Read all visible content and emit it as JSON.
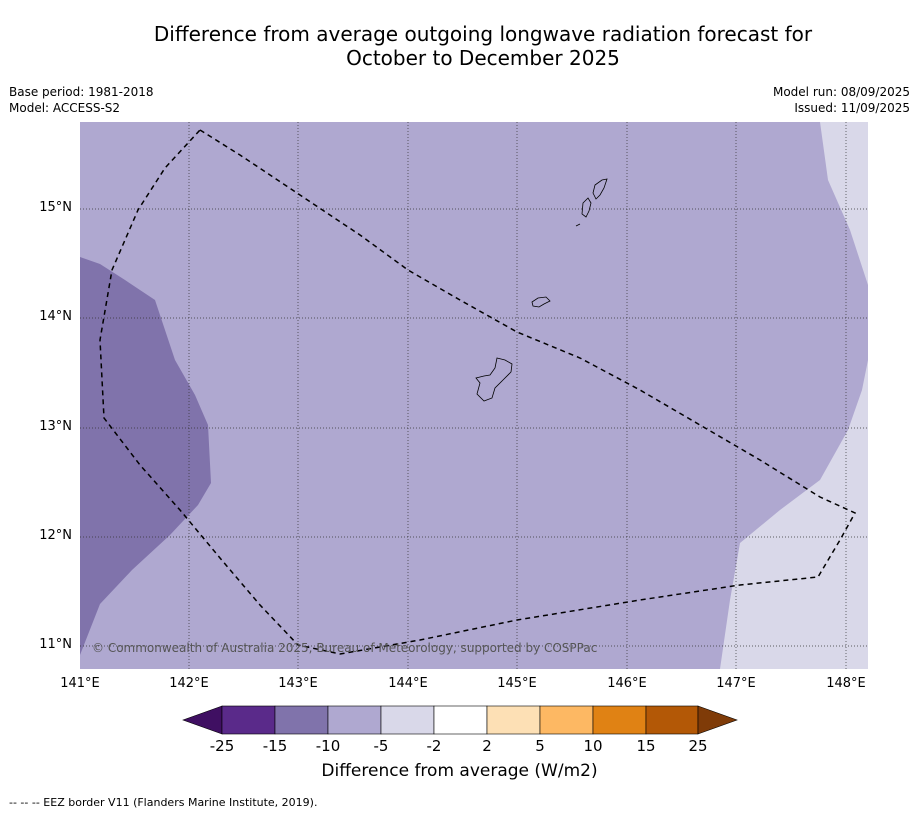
{
  "title": {
    "line1": "Difference from average outgoing longwave radiation forecast for",
    "line2": "October to December 2025"
  },
  "meta": {
    "base_period": "Base period: 1981-2018",
    "model": "Model: ACCESS-S2",
    "model_run": "Model run: 08/09/2025",
    "issued": "Issued: 11/09/2025"
  },
  "map": {
    "latitude_labels": [
      "15°N",
      "14°N",
      "13°N",
      "12°N",
      "11°N"
    ],
    "longitude_labels": [
      "141°E",
      "142°E",
      "143°E",
      "144°E",
      "145°E",
      "146°E",
      "147°E",
      "148°E"
    ],
    "copyright": "© Commonwealth of Australia 2025, Bureau of Meteorology, supported by COSPPac",
    "colors": {
      "band_minus15_minus10": "#8073ab",
      "band_minus10_minus5": "#afa8d0",
      "band_minus5_minus2": "#d9d8e9"
    }
  },
  "colorbar": {
    "ticks": [
      "-25",
      "-15",
      "-10",
      "-5",
      "-2",
      "2",
      "5",
      "10",
      "15",
      "25"
    ],
    "colors": [
      "#3f0f62",
      "#5a2a8a",
      "#8073ab",
      "#afa8d0",
      "#d9d8e9",
      "#ffffff",
      "#fde0b5",
      "#fdb863",
      "#e08214",
      "#b35806",
      "#7f3b08"
    ],
    "title": "Difference from average (W/m2)"
  },
  "footnote": "--  --  -- EEZ border V11 (Flanders Marine Institute, 2019)."
}
